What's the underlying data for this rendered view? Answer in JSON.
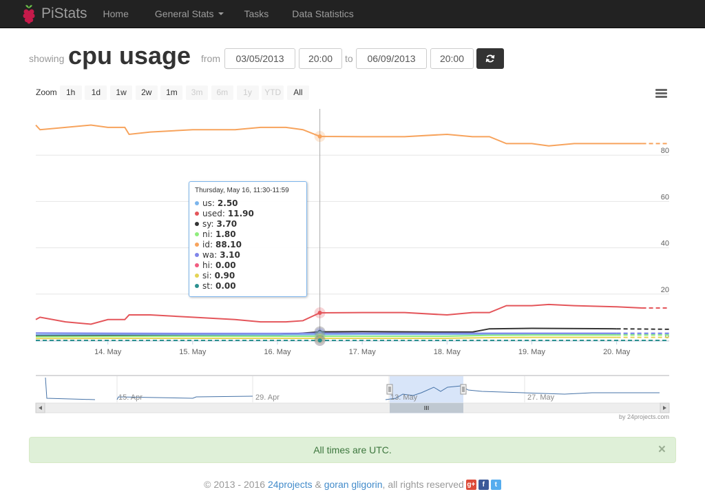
{
  "navbar": {
    "brand": "PiStats",
    "items": [
      {
        "label": "Home"
      },
      {
        "label": "General Stats"
      },
      {
        "label": "Tasks"
      },
      {
        "label": "Data Statistics"
      }
    ]
  },
  "heading": {
    "showing_label": "showing",
    "title": "cpu usage",
    "from_label": "from",
    "from_date": "03/05/2013",
    "from_time": "20:00",
    "to_label": "to",
    "to_date": "06/09/2013",
    "to_time": "20:00",
    "refresh_icon": "refresh-icon"
  },
  "range_selector": {
    "label": "Zoom",
    "buttons": [
      {
        "label": "1h",
        "enabled": true
      },
      {
        "label": "1d",
        "enabled": true
      },
      {
        "label": "1w",
        "enabled": true
      },
      {
        "label": "2w",
        "enabled": true
      },
      {
        "label": "1m",
        "enabled": true
      },
      {
        "label": "3m",
        "enabled": false
      },
      {
        "label": "6m",
        "enabled": false
      },
      {
        "label": "1y",
        "enabled": false
      },
      {
        "label": "YTD",
        "enabled": false
      },
      {
        "label": "All",
        "enabled": true
      }
    ],
    "menu_icon": "hamburger-menu-icon"
  },
  "chart_data": {
    "type": "line",
    "title": "",
    "xlabel": "",
    "ylabel": "",
    "ylim": [
      0,
      100
    ],
    "yticks": [
      0,
      20,
      40,
      60,
      80
    ],
    "xlim": [
      13.15,
      20.62
    ],
    "xticks": [
      {
        "x": 14,
        "label": "14. May"
      },
      {
        "x": 15,
        "label": "15. May"
      },
      {
        "x": 16,
        "label": "16. May"
      },
      {
        "x": 17,
        "label": "17. May"
      },
      {
        "x": 18,
        "label": "18. May"
      },
      {
        "x": 19,
        "label": "19. May"
      },
      {
        "x": 20,
        "label": "20. May"
      }
    ],
    "hover_x": 16.5,
    "series": [
      {
        "name": "id",
        "color": "#f7a35c",
        "x": [
          13.15,
          13.2,
          13.5,
          13.8,
          14.0,
          14.2,
          14.25,
          14.5,
          15.0,
          15.5,
          15.8,
          16.1,
          16.3,
          16.5,
          17.0,
          17.5,
          18.0,
          18.3,
          18.5,
          18.7,
          19.0,
          19.2,
          19.5,
          20.0,
          20.3,
          20.62
        ],
        "y": [
          93,
          91,
          92,
          93,
          92,
          92,
          89,
          90,
          91,
          91,
          92,
          92,
          91,
          88.1,
          88,
          88,
          89,
          88,
          88,
          85,
          85,
          84,
          85,
          85,
          85,
          85
        ]
      },
      {
        "name": "used",
        "color": "#e4555a",
        "x": [
          13.15,
          13.2,
          13.5,
          13.8,
          14.0,
          14.2,
          14.25,
          14.5,
          15.0,
          15.5,
          15.8,
          16.1,
          16.3,
          16.5,
          17.0,
          17.5,
          18.0,
          18.3,
          18.5,
          18.7,
          19.0,
          19.2,
          19.5,
          20.0,
          20.3,
          20.62
        ],
        "y": [
          9,
          10,
          8,
          7,
          9,
          9,
          11,
          11,
          10,
          9,
          8,
          8,
          8.5,
          11.9,
          12,
          12,
          11,
          12,
          12,
          15,
          15,
          15.5,
          15,
          14.5,
          14,
          14
        ]
      },
      {
        "name": "sy",
        "color": "#333333",
        "x": [
          13.15,
          14.0,
          15.0,
          16.0,
          16.5,
          17.0,
          18.0,
          18.3,
          18.5,
          19.0,
          20.0,
          20.62
        ],
        "y": [
          2,
          2.2,
          2.3,
          2.3,
          3.7,
          3.8,
          3.6,
          3.6,
          5,
          5.2,
          5,
          4.8
        ]
      },
      {
        "name": "us",
        "color": "#7cb5ec",
        "x": [
          13.15,
          14.0,
          15.0,
          16.0,
          16.5,
          17.0,
          18.0,
          19.0,
          20.0,
          20.62
        ],
        "y": [
          2.5,
          2.6,
          2.5,
          2.4,
          2.5,
          2.6,
          2.6,
          2.7,
          2.6,
          2.6
        ]
      },
      {
        "name": "wa",
        "color": "#8085e9",
        "x": [
          13.15,
          14.0,
          15.0,
          16.0,
          16.5,
          17.0,
          18.0,
          19.0,
          20.0,
          20.62
        ],
        "y": [
          3.2,
          3.1,
          3.0,
          3.0,
          3.1,
          3.1,
          3.1,
          3.1,
          3.1,
          3.1
        ]
      },
      {
        "name": "ni",
        "color": "#90ed7d",
        "x": [
          13.15,
          14.0,
          15.0,
          16.0,
          16.5,
          17.0,
          18.0,
          18.5,
          19.0,
          20.0,
          20.62
        ],
        "y": [
          1.6,
          1.7,
          1.8,
          1.8,
          1.8,
          1.8,
          1.8,
          2.2,
          2.3,
          2.3,
          2.3
        ]
      },
      {
        "name": "si",
        "color": "#e4d354",
        "x": [
          13.15,
          14.0,
          15.0,
          16.0,
          16.5,
          17.0,
          18.0,
          18.5,
          19.0,
          20.0,
          20.62
        ],
        "y": [
          0.8,
          0.9,
          0.9,
          0.9,
          0.9,
          0.9,
          0.9,
          1.2,
          1.3,
          1.3,
          1.3
        ]
      },
      {
        "name": "hi",
        "color": "#f15c80",
        "x": [
          13.15,
          20.62
        ],
        "y": [
          0,
          0
        ]
      },
      {
        "name": "st",
        "color": "#2b908f",
        "x": [
          13.15,
          20.62
        ],
        "y": [
          0,
          0
        ]
      }
    ],
    "navigator": {
      "labels": [
        "15. Apr",
        "29. Apr",
        "13. May",
        "27. May"
      ],
      "scroll_handle_icon": "grip-icon",
      "left_arrow_icon": "left-arrow-icon",
      "right_arrow_icon": "right-arrow-icon"
    },
    "credit": "by 24projects.com"
  },
  "tooltip": {
    "header": "Thursday, May 16, 11:30-11:59",
    "rows": [
      {
        "name": "us",
        "value": "2.50",
        "color": "#7cb5ec"
      },
      {
        "name": "used",
        "value": "11.90",
        "color": "#e4555a"
      },
      {
        "name": "sy",
        "value": "3.70",
        "color": "#333333"
      },
      {
        "name": "ni",
        "value": "1.80",
        "color": "#90ed7d"
      },
      {
        "name": "id",
        "value": "88.10",
        "color": "#f7a35c"
      },
      {
        "name": "wa",
        "value": "3.10",
        "color": "#8085e9"
      },
      {
        "name": "hi",
        "value": "0.00",
        "color": "#f15c80"
      },
      {
        "name": "si",
        "value": "0.90",
        "color": "#e4d354"
      },
      {
        "name": "st",
        "value": "0.00",
        "color": "#2b908f"
      }
    ]
  },
  "alert": {
    "text": "All times are UTC.",
    "close": "×"
  },
  "footer": {
    "prefix": "© 2013 - 2016",
    "link1": "24projects",
    "amp": "&",
    "link2": "goran gligorin",
    "suffix": ", all rights reserved",
    "social": [
      {
        "name": "google-plus-icon",
        "text": "g+",
        "color": "#dd4b39"
      },
      {
        "name": "facebook-icon",
        "text": "f",
        "color": "#3b5998"
      },
      {
        "name": "twitter-icon",
        "text": "t",
        "color": "#55acee"
      }
    ]
  }
}
